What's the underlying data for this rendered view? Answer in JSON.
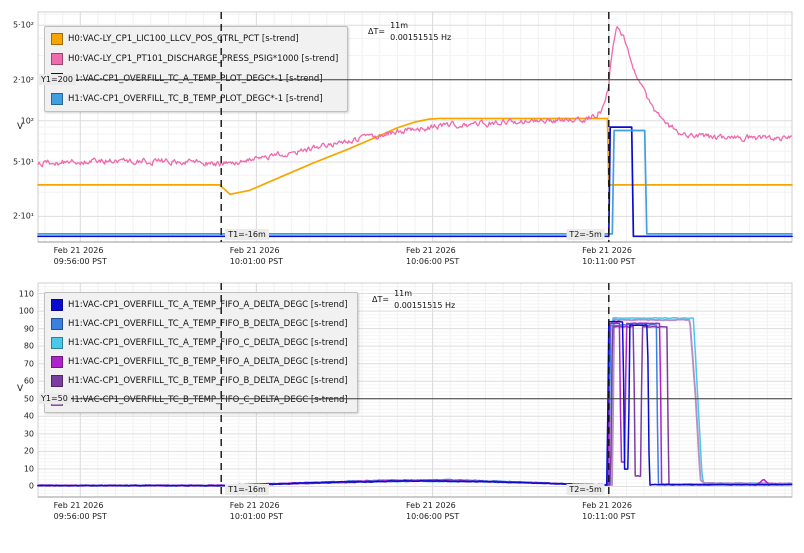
{
  "chart_data": [
    {
      "id": "pressure-valve-trend",
      "type": "line",
      "ylabel": "V",
      "y_scale": "log",
      "ylim": [
        13,
        625
      ],
      "grid": true,
      "legend_position": "top-left",
      "y_ticks": [
        {
          "v": 500,
          "label": "5·10²"
        },
        {
          "v": 200,
          "label": "2·10²"
        },
        {
          "v": 100,
          "label": "10²"
        },
        {
          "v": 50,
          "label": "5·10¹"
        },
        {
          "v": 20,
          "label": "2·10¹"
        }
      ],
      "y_minor": [
        30,
        40,
        60,
        70,
        80,
        90,
        300,
        400,
        600
      ],
      "x": {
        "min": -21.2,
        "max": 0.2,
        "minor_step": 0.5,
        "unit": "minutes-relative-to-now",
        "ticks": [
          {
            "t": -20,
            "date": "Feb 21 2026",
            "time": "09:56:00 PST"
          },
          {
            "t": -15,
            "date": "Feb 21 2026",
            "time": "10:01:00 PST"
          },
          {
            "t": -10,
            "date": "Feb 21 2026",
            "time": "10:06:00 PST"
          },
          {
            "t": -5,
            "date": "Feb 21 2026",
            "time": "10:11:00 PST"
          }
        ]
      },
      "cursors": [
        {
          "t": -16,
          "label": "T1=-16m"
        },
        {
          "t": -5,
          "label": "T2=-5m"
        }
      ],
      "y1": {
        "value": 200,
        "label": "Y1=200"
      },
      "annotation": {
        "prefix": "ΔT=",
        "value": "11m",
        "freq": "0.00151515 Hz"
      },
      "legend": [
        {
          "color": "#f7a600",
          "label": "H0:VAC-LY_CP1_LIC100_LLCV_POS_CTRL_PCT [s-trend]"
        },
        {
          "color": "#ef6aae",
          "label": "H0:VAC-LY_CP1_PT101_DISCHARGE_PRESS_PSIG*1000 [s-trend]"
        },
        {
          "color": "#0b0bd0",
          "label": "H1:VAC-CP1_OVERFILL_TC_A_TEMP_PLOT_DEGC*-1 [s-trend]"
        },
        {
          "color": "#3f9fe0",
          "label": "H1:VAC-CP1_OVERFILL_TC_B_TEMP_PLOT_DEGC*-1 [s-trend]"
        }
      ],
      "series": [
        {
          "name": "llcv-pos-ctrl-pct",
          "color": "#f7a600",
          "width": 1.7,
          "points": [
            [
              -21.2,
              34
            ],
            [
              -16.05,
              34
            ],
            [
              -15.75,
              29
            ],
            [
              -15.2,
              31
            ],
            [
              -14.4,
              38
            ],
            [
              -13.4,
              49
            ],
            [
              -12.4,
              62
            ],
            [
              -11.6,
              76
            ],
            [
              -11,
              89
            ],
            [
              -10.5,
              98
            ],
            [
              -10.1,
              103
            ],
            [
              -9.8,
              104
            ],
            [
              -5.04,
              104
            ],
            [
              -5,
              34
            ],
            [
              0.2,
              34
            ]
          ]
        },
        {
          "name": "pt101-discharge-press",
          "color": "#ef6aae",
          "width": 1.3,
          "noise_rel": 0.055,
          "points": [
            [
              -21.2,
              49
            ],
            [
              -19.5,
              51
            ],
            [
              -18,
              51
            ],
            [
              -16.5,
              50
            ],
            [
              -16,
              49
            ],
            [
              -15.3,
              51
            ],
            [
              -14.5,
              56
            ],
            [
              -13.5,
              62
            ],
            [
              -12.5,
              70
            ],
            [
              -11.5,
              79
            ],
            [
              -10.5,
              87
            ],
            [
              -9.5,
              93
            ],
            [
              -8.5,
              96
            ],
            [
              -7.5,
              98
            ],
            [
              -6.5,
              100
            ],
            [
              -5.8,
              103
            ],
            [
              -5.4,
              108
            ],
            [
              -5.15,
              125
            ],
            [
              -5,
              190
            ],
            [
              -4.9,
              330
            ],
            [
              -4.8,
              460
            ],
            [
              -4.72,
              480
            ],
            [
              -4.6,
              420
            ],
            [
              -4.45,
              330
            ],
            [
              -4.3,
              250
            ],
            [
              -4.1,
              185
            ],
            [
              -3.9,
              140
            ],
            [
              -3.6,
              110
            ],
            [
              -3.3,
              92
            ],
            [
              -3,
              83
            ],
            [
              -2.6,
              78
            ],
            [
              -2,
              76
            ],
            [
              0.2,
              74
            ]
          ]
        },
        {
          "name": "tc-a-temp-plot",
          "color": "#0b0bd0",
          "width": 1.7,
          "points": [
            [
              -21.2,
              14.3
            ],
            [
              -5,
              14.3
            ],
            [
              -4.96,
              90
            ],
            [
              -4.35,
              90
            ],
            [
              -4.3,
              14.3
            ],
            [
              0.2,
              14.3
            ]
          ]
        },
        {
          "name": "tc-b-temp-plot",
          "color": "#3f9fe0",
          "width": 1.7,
          "points": [
            [
              -21.2,
              14.9
            ],
            [
              -4.9,
              14.9
            ],
            [
              -4.85,
              85
            ],
            [
              -3.98,
              85
            ],
            [
              -3.92,
              14.9
            ],
            [
              0.2,
              14.9
            ]
          ]
        }
      ]
    },
    {
      "id": "overfill-delta-trend",
      "type": "line",
      "ylabel": "V",
      "y_scale": "linear",
      "ylim": [
        -6,
        116
      ],
      "grid": true,
      "legend_position": "top-left",
      "y_ticks": [
        {
          "v": 0,
          "label": "0"
        },
        {
          "v": 10,
          "label": "10"
        },
        {
          "v": 20,
          "label": "20"
        },
        {
          "v": 30,
          "label": "30"
        },
        {
          "v": 40,
          "label": "40"
        },
        {
          "v": 50,
          "label": "50"
        },
        {
          "v": 60,
          "label": "60"
        },
        {
          "v": 70,
          "label": "70"
        },
        {
          "v": 80,
          "label": "80"
        },
        {
          "v": 90,
          "label": "90"
        },
        {
          "v": 100,
          "label": "100"
        },
        {
          "v": 110,
          "label": "110"
        }
      ],
      "y_minor_step": 2,
      "x": {
        "min": -21.2,
        "max": 0.2,
        "minor_step": 0.5,
        "unit": "minutes-relative-to-now",
        "ticks": [
          {
            "t": -20,
            "date": "Feb 21 2026",
            "time": "09:56:00 PST"
          },
          {
            "t": -15,
            "date": "Feb 21 2026",
            "time": "10:01:00 PST"
          },
          {
            "t": -10,
            "date": "Feb 21 2026",
            "time": "10:06:00 PST"
          },
          {
            "t": -5,
            "date": "Feb 21 2026",
            "time": "10:11:00 PST"
          }
        ]
      },
      "cursors": [
        {
          "t": -16,
          "label": "T1=-16m"
        },
        {
          "t": -5,
          "label": "T2=-5m"
        }
      ],
      "y1": {
        "value": 50,
        "label": "Y1=50"
      },
      "annotation": {
        "prefix": "ΔT=",
        "value": "11m",
        "freq": "0.00151515 Hz"
      },
      "legend": [
        {
          "color": "#0b0bd0",
          "label": "H1:VAC-CP1_OVERFILL_TC_A_TEMP_FIFO_A_DELTA_DEGC [s-trend]"
        },
        {
          "color": "#3b7fe0",
          "label": "H1:VAC-CP1_OVERFILL_TC_A_TEMP_FIFO_B_DELTA_DEGC [s-trend]"
        },
        {
          "color": "#49c8ea",
          "label": "H1:VAC-CP1_OVERFILL_TC_A_TEMP_FIFO_C_DELTA_DEGC [s-trend]"
        },
        {
          "color": "#ae22cc",
          "label": "H1:VAC-CP1_OVERFILL_TC_B_TEMP_FIFO_A_DELTA_DEGC [s-trend]"
        },
        {
          "color": "#7d3da0",
          "label": "H1:VAC-CP1_OVERFILL_TC_B_TEMP_FIFO_B_DELTA_DEGC [s-trend]"
        },
        {
          "color": "#b78fc6",
          "label": "H1:VAC-CP1_OVERFILL_TC_B_TEMP_FIFO_C_DELTA_DEGC [s-trend]"
        }
      ],
      "series": [
        {
          "name": "tc-a-fifo-c-delta",
          "color": "#49c8ea",
          "width": 1.5,
          "noise_abs": 0.22,
          "points": [
            [
              -21.2,
              0.5
            ],
            [
              -16,
              0.5
            ],
            [
              -13.5,
              2.2
            ],
            [
              -10.5,
              3.0
            ],
            [
              -8,
              2.4
            ],
            [
              -6.5,
              1.5
            ],
            [
              -5,
              0.8
            ],
            [
              -4.93,
              0.8
            ],
            [
              -4.88,
              96
            ],
            [
              -2.6,
              96
            ],
            [
              -2.5,
              60
            ],
            [
              -2.35,
              5
            ],
            [
              -2.3,
              2
            ],
            [
              0.2,
              1.6
            ]
          ]
        },
        {
          "name": "tc-b-fifo-c-delta",
          "color": "#b78fc6",
          "width": 1.9,
          "noise_abs": 0.22,
          "points": [
            [
              -21.2,
              0.6
            ],
            [
              -16,
              0.6
            ],
            [
              -13,
              2.4
            ],
            [
              -10,
              3.3
            ],
            [
              -7.5,
              2.3
            ],
            [
              -6,
              1.3
            ],
            [
              -4.95,
              0.8
            ],
            [
              -4.9,
              0.8
            ],
            [
              -4.85,
              95
            ],
            [
              -2.7,
              95
            ],
            [
              -2.55,
              55
            ],
            [
              -2.4,
              4
            ],
            [
              -2.3,
              1.8
            ],
            [
              0.2,
              1.8
            ]
          ]
        },
        {
          "name": "tc-a-fifo-b-delta",
          "color": "#3b7fe0",
          "width": 1.5,
          "noise_abs": 0.22,
          "points": [
            [
              -21.2,
              0.6
            ],
            [
              -16,
              0.6
            ],
            [
              -14,
              1.8
            ],
            [
              -11.5,
              3.6
            ],
            [
              -9.5,
              3.8
            ],
            [
              -7.5,
              2.6
            ],
            [
              -6,
              1.4
            ],
            [
              -5.1,
              0.9
            ],
            [
              -5,
              0.9
            ],
            [
              -4.95,
              92
            ],
            [
              -3.65,
              92
            ],
            [
              -3.6,
              1.2
            ],
            [
              0.2,
              1.2
            ]
          ]
        },
        {
          "name": "tc-b-fifo-b-delta",
          "color": "#7d3da0",
          "width": 1.5,
          "noise_abs": 0.22,
          "points": [
            [
              -21.2,
              0.5
            ],
            [
              -16,
              0.5
            ],
            [
              -14,
              1.5
            ],
            [
              -11,
              3.1
            ],
            [
              -9,
              3.0
            ],
            [
              -7,
              2.0
            ],
            [
              -5.8,
              1.1
            ],
            [
              -4.95,
              0.9
            ],
            [
              -4.9,
              91
            ],
            [
              -4.3,
              91
            ],
            [
              -4.25,
              6
            ],
            [
              -4.1,
              6
            ],
            [
              -4.05,
              91
            ],
            [
              -3.35,
              91
            ],
            [
              -3.3,
              1
            ],
            [
              0.2,
              1
            ]
          ]
        },
        {
          "name": "tc-b-fifo-a-delta",
          "color": "#ae22cc",
          "width": 1.5,
          "noise_abs": 0.22,
          "points": [
            [
              -21.2,
              0.6
            ],
            [
              -16,
              0.6
            ],
            [
              -14.5,
              1.6
            ],
            [
              -12,
              3.0
            ],
            [
              -10,
              3.4
            ],
            [
              -8,
              2.6
            ],
            [
              -6.5,
              1.6
            ],
            [
              -5.4,
              0.9
            ],
            [
              -5.03,
              0.9
            ],
            [
              -4.98,
              93
            ],
            [
              -4.7,
              93
            ],
            [
              -4.65,
              14
            ],
            [
              -4.55,
              14
            ],
            [
              -4.5,
              93
            ],
            [
              -3.55,
              93
            ],
            [
              -3.5,
              1.1
            ],
            [
              -0.8,
              1.1
            ],
            [
              -0.6,
              4
            ],
            [
              -0.45,
              1.5
            ],
            [
              0.2,
              1.1
            ]
          ]
        },
        {
          "name": "tc-a-fifo-a-delta",
          "color": "#0b0bd0",
          "width": 1.5,
          "noise_abs": 0.22,
          "points": [
            [
              -21.2,
              0.5
            ],
            [
              -16,
              0.5
            ],
            [
              -14.5,
              1.4
            ],
            [
              -12.5,
              2.6
            ],
            [
              -10.5,
              3.2
            ],
            [
              -8.5,
              2.7
            ],
            [
              -7,
              1.9
            ],
            [
              -6,
              1.2
            ],
            [
              -5.3,
              0.8
            ],
            [
              -5.05,
              0.8
            ],
            [
              -5,
              94
            ],
            [
              -4.6,
              94
            ],
            [
              -4.55,
              10
            ],
            [
              -4.45,
              10
            ],
            [
              -4.4,
              92
            ],
            [
              -3.9,
              92
            ],
            [
              -3.85,
              1
            ],
            [
              0.2,
              1
            ]
          ]
        }
      ]
    }
  ]
}
